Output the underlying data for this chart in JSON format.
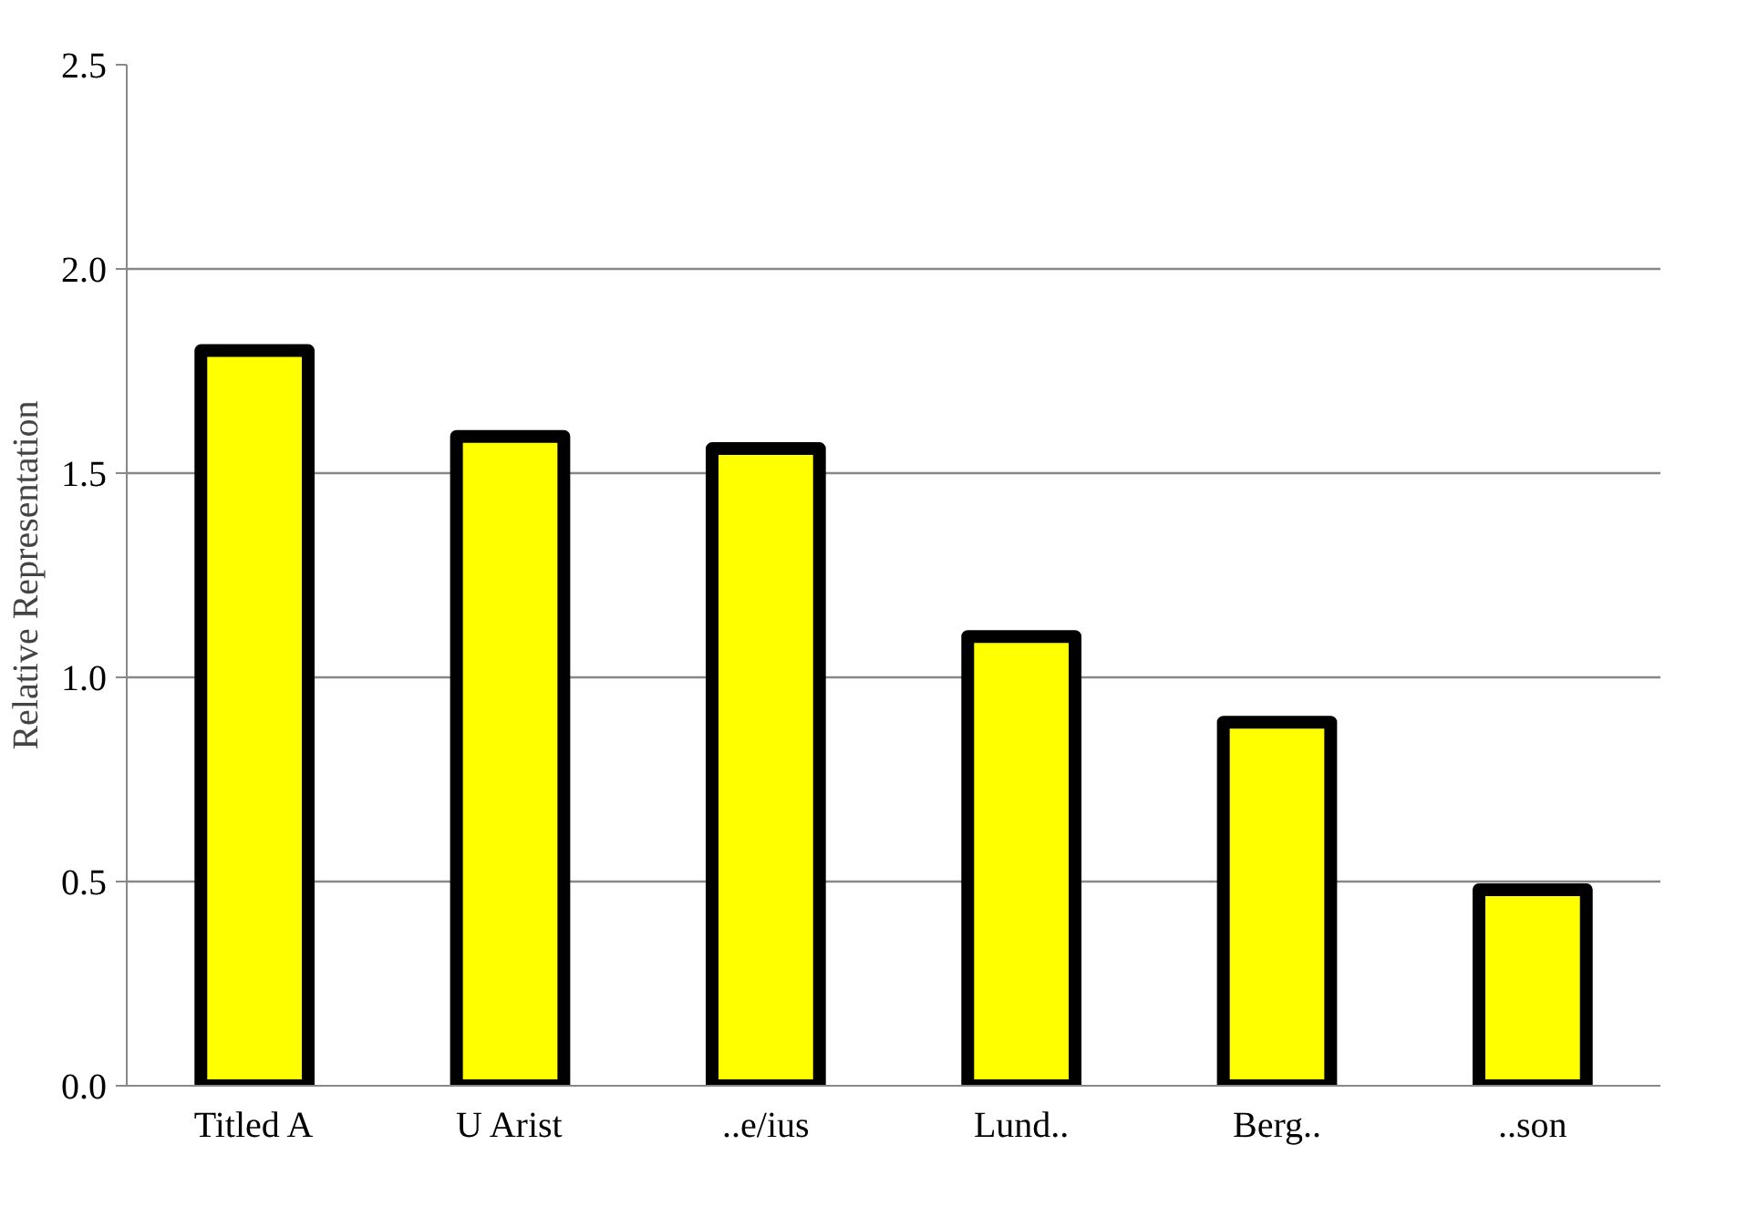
{
  "chart_data": {
    "type": "bar",
    "ylabel": "Relative Representation",
    "categories": [
      "Titled A",
      "U Arist",
      "..e/ius",
      "Lund..",
      "Berg..",
      "..son"
    ],
    "values": [
      1.8,
      1.59,
      1.56,
      1.1,
      0.89,
      0.48
    ],
    "color": "#ffff00",
    "ylim": [
      0,
      2.5
    ],
    "yticks": [
      {
        "value": 0,
        "label": "0.0"
      },
      {
        "value": 0.5,
        "label": "0.5"
      },
      {
        "value": 1,
        "label": "1.0"
      },
      1.5,
      {
        "value": 2,
        "label": "2.0"
      },
      2.5
    ],
    "grid": "y"
  }
}
